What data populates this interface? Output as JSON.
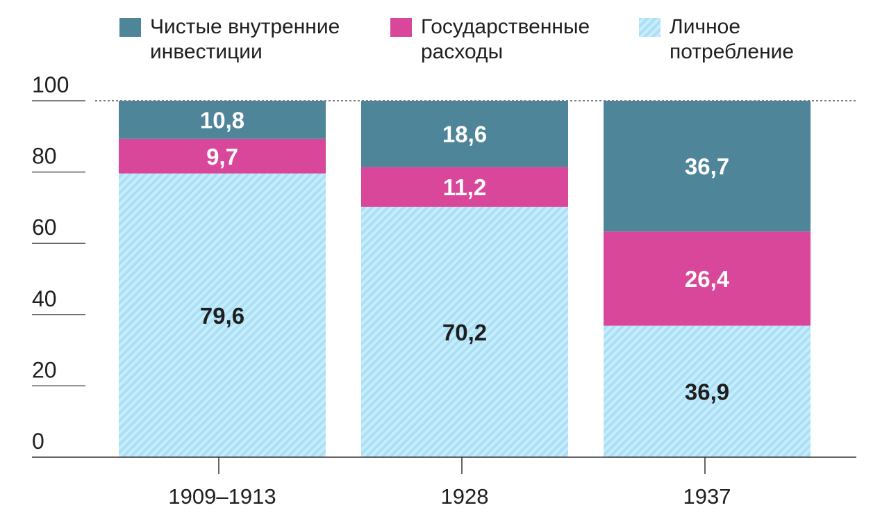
{
  "colors": {
    "investment": "#4f8599",
    "government": "#d9479a",
    "consumption": "#a9e0f7",
    "consumption_hatch": "#c9ecfb",
    "axis": "#333333",
    "text_dark": "#1f1f1f",
    "text_light": "#ffffff"
  },
  "legend": [
    {
      "key": "investment",
      "icon": "square-swatch",
      "lines": [
        "Чистые внутренние",
        "инвестиции"
      ]
    },
    {
      "key": "government",
      "icon": "square-swatch",
      "lines": [
        "Государственные",
        "расходы"
      ]
    },
    {
      "key": "consumption",
      "icon": "hatched-square-swatch",
      "lines": [
        "Личное",
        "потребление"
      ]
    }
  ],
  "chart_data": {
    "type": "bar",
    "stacked": true,
    "categories": [
      "1909–1913",
      "1928",
      "1937"
    ],
    "series": [
      {
        "key": "consumption",
        "values": [
          79.6,
          70.2,
          36.9
        ],
        "labels": [
          "79,6",
          "70,2",
          "36,9"
        ]
      },
      {
        "key": "government",
        "values": [
          9.7,
          11.2,
          26.4
        ],
        "labels": [
          "9,7",
          "11,2",
          "26,4"
        ]
      },
      {
        "key": "investment",
        "values": [
          10.8,
          18.6,
          36.7
        ],
        "labels": [
          "10,8",
          "18,6",
          "36,7"
        ]
      }
    ],
    "ylim": [
      0,
      100
    ],
    "yticks": [
      0,
      20,
      40,
      60,
      80,
      100
    ],
    "ytick_labels": [
      "0",
      "20",
      "40",
      "60",
      "80",
      "100"
    ],
    "grid": false,
    "legend_position": "top"
  }
}
